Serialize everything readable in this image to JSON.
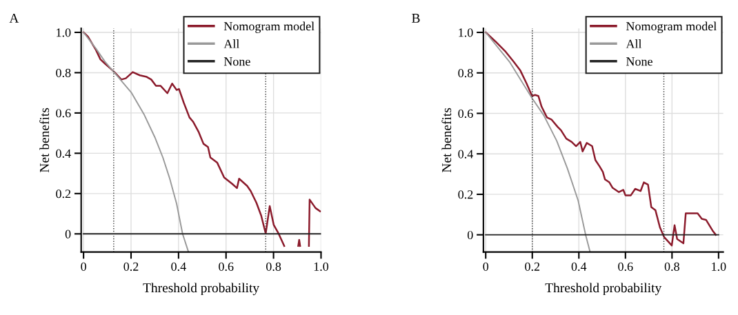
{
  "chart_data": [
    {
      "type": "line",
      "title": "A",
      "xlabel": "Threshold probability",
      "ylabel": "Net benefits",
      "xlim": [
        -0.01,
        1.0
      ],
      "ylim": [
        -0.09,
        1.02
      ],
      "xticks": [
        0,
        0.2,
        0.4,
        0.6,
        0.8,
        {
          "value": 1,
          "label": "1.0"
        }
      ],
      "yticks": [
        0,
        0.2,
        0.4,
        0.6,
        0.8,
        {
          "value": 1,
          "label": "1.0"
        }
      ],
      "grid": true,
      "legend": "top right",
      "line_style": "solid",
      "marker": "none",
      "series": [
        {
          "name": "Nomogram model",
          "color": "#8b1a2b",
          "x": [
            0,
            0.018,
            0.052,
            0.071,
            0.09,
            0.11,
            0.13,
            0.159,
            0.178,
            0.207,
            0.237,
            0.266,
            0.285,
            0.305,
            0.324,
            0.353,
            0.373,
            0.392,
            0.402,
            0.422,
            0.446,
            0.461,
            0.485,
            0.505,
            0.524,
            0.534,
            0.563,
            0.592,
            0.626,
            0.646,
            0.655,
            0.689,
            0.704,
            0.728,
            0.748,
            0.767,
            0.784,
            0.801,
            0.821,
            0.845,
            0.875,
            0.904,
            0.908,
            0.912,
            0.93,
            0.949,
            0.952,
            0.977,
            0.996
          ],
          "values": [
            1.0,
            0.98,
            0.913,
            0.866,
            0.845,
            0.824,
            0.803,
            0.766,
            0.772,
            0.803,
            0.787,
            0.779,
            0.766,
            0.735,
            0.735,
            0.698,
            0.746,
            0.714,
            0.719,
            0.651,
            0.578,
            0.557,
            0.505,
            0.447,
            0.431,
            0.379,
            0.353,
            0.28,
            0.248,
            0.227,
            0.274,
            0.238,
            0.212,
            0.154,
            0.091,
            0.002,
            0.138,
            0.044,
            0.002,
            -0.06,
            null,
            -0.06,
            -0.03,
            -0.06,
            null,
            -0.06,
            0.17,
            0.128,
            0.112
          ]
        },
        {
          "name": "All",
          "color": "#999999",
          "x": [
            0,
            0.052,
            0.09,
            0.13,
            0.202,
            0.256,
            0.3,
            0.334,
            0.363,
            0.392,
            0.417,
            0.441
          ],
          "values": [
            1.0,
            0.92,
            0.855,
            0.8,
            0.7,
            0.59,
            0.48,
            0.379,
            0.274,
            0.149,
            0.0,
            -0.087
          ]
        },
        {
          "name": "None",
          "color": "#222222",
          "x": [
            0,
            1.0
          ],
          "values": [
            0,
            0
          ]
        }
      ],
      "ref_lines": [
        {
          "axis": "x",
          "value": 0.127,
          "color": "#333333",
          "line_style": "dotted"
        },
        {
          "axis": "x",
          "value": 0.767,
          "color": "#333333",
          "line_style": "dotted"
        }
      ]
    },
    {
      "type": "line",
      "title": "B",
      "xlabel": "Threshold probability",
      "ylabel": "Net benefits",
      "xlim": [
        -0.01,
        1.02
      ],
      "ylim": [
        -0.085,
        1.02
      ],
      "xticks": [
        0,
        0.2,
        0.4,
        0.6,
        0.8,
        {
          "value": 1,
          "label": "1.0"
        }
      ],
      "yticks": [
        0,
        0.2,
        0.4,
        0.6,
        0.8,
        {
          "value": 1,
          "label": "1.0"
        }
      ],
      "grid": true,
      "legend": "top right",
      "line_style": "solid",
      "marker": "none",
      "series": [
        {
          "name": "Nomogram model",
          "color": "#8b1a2b",
          "x": [
            0,
            0.042,
            0.083,
            0.12,
            0.148,
            0.175,
            0.199,
            0.212,
            0.226,
            0.24,
            0.263,
            0.282,
            0.309,
            0.323,
            0.346,
            0.369,
            0.388,
            0.406,
            0.416,
            0.434,
            0.457,
            0.471,
            0.489,
            0.503,
            0.512,
            0.531,
            0.545,
            0.572,
            0.591,
            0.6,
            0.623,
            0.642,
            0.665,
            0.679,
            0.697,
            0.711,
            0.729,
            0.748,
            0.766,
            0.799,
            0.811,
            0.822,
            0.849,
            0.859,
            0.91,
            0.928,
            0.946,
            0.974,
            0.988
          ],
          "values": [
            1.0,
            0.955,
            0.908,
            0.855,
            0.813,
            0.749,
            0.686,
            0.691,
            0.686,
            0.633,
            0.58,
            0.57,
            0.533,
            0.517,
            0.475,
            0.459,
            0.438,
            0.459,
            0.412,
            0.454,
            0.438,
            0.369,
            0.338,
            0.311,
            0.274,
            0.259,
            0.232,
            0.211,
            0.222,
            0.195,
            0.195,
            0.227,
            0.216,
            0.259,
            0.248,
            0.137,
            0.121,
            0.037,
            -0.011,
            -0.053,
            0.047,
            -0.021,
            -0.042,
            0.106,
            0.106,
            0.079,
            0.074,
            0.021,
            0.0
          ]
        },
        {
          "name": "All",
          "color": "#999999",
          "x": [
            0,
            0.102,
            0.199,
            0.249,
            0.305,
            0.351,
            0.397,
            0.429,
            0.448
          ],
          "values": [
            1.0,
            0.855,
            0.675,
            0.591,
            0.464,
            0.327,
            0.169,
            0.0,
            -0.084
          ]
        },
        {
          "name": "None",
          "color": "#222222",
          "x": [
            0,
            1.0
          ],
          "values": [
            0,
            0
          ]
        }
      ],
      "ref_lines": [
        {
          "axis": "x",
          "value": 0.2,
          "color": "#333333",
          "line_style": "dotted"
        },
        {
          "axis": "x",
          "value": 0.765,
          "color": "#333333",
          "line_style": "dotted"
        }
      ]
    }
  ]
}
